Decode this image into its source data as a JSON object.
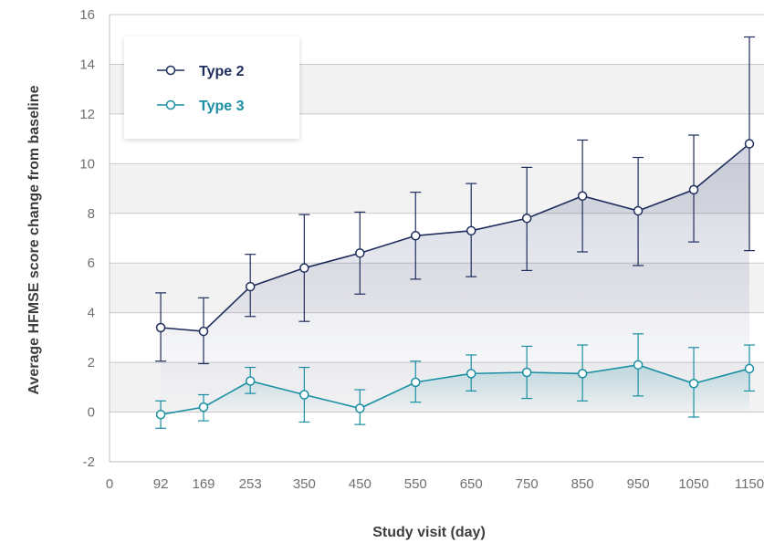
{
  "chart_data": {
    "type": "line",
    "title": "",
    "xlabel": "Study visit (day)",
    "ylabel": "Average HFMSE score change from baseline",
    "x": [
      92,
      169,
      253,
      350,
      450,
      550,
      650,
      750,
      850,
      950,
      1050,
      1150
    ],
    "x_tick_labels": [
      "0",
      "92",
      "169",
      "253",
      "350",
      "450",
      "550",
      "650",
      "750",
      "850",
      "950",
      "1050",
      "1150"
    ],
    "y_ticks": [
      -2,
      0,
      2,
      4,
      6,
      8,
      10,
      12,
      14,
      16
    ],
    "ylim": [
      -2,
      16
    ],
    "grid": "horizontal",
    "legend_position": "top-left",
    "series": [
      {
        "name": "Type 2",
        "color": "#1f2d5c",
        "values": [
          3.4,
          3.25,
          5.05,
          5.8,
          6.4,
          7.1,
          7.3,
          7.8,
          8.7,
          8.1,
          8.95,
          10.8
        ],
        "err_low": [
          2.05,
          1.95,
          3.85,
          3.65,
          4.75,
          5.35,
          5.45,
          5.7,
          6.45,
          5.9,
          6.85,
          6.5
        ],
        "err_high": [
          4.8,
          4.6,
          6.35,
          7.95,
          8.05,
          8.85,
          9.2,
          9.85,
          10.95,
          10.25,
          11.15,
          15.1
        ]
      },
      {
        "name": "Type 3",
        "color": "#1a8fa3",
        "values": [
          -0.1,
          0.2,
          1.25,
          0.7,
          0.15,
          1.2,
          1.55,
          1.6,
          1.55,
          1.9,
          1.15,
          1.75
        ],
        "err_low": [
          -0.65,
          -0.35,
          0.75,
          -0.4,
          -0.5,
          0.4,
          0.85,
          0.55,
          0.45,
          0.65,
          -0.2,
          0.85
        ],
        "err_high": [
          0.45,
          0.7,
          1.8,
          1.8,
          0.9,
          2.05,
          2.3,
          2.65,
          2.7,
          3.15,
          2.6,
          2.7
        ]
      }
    ]
  }
}
